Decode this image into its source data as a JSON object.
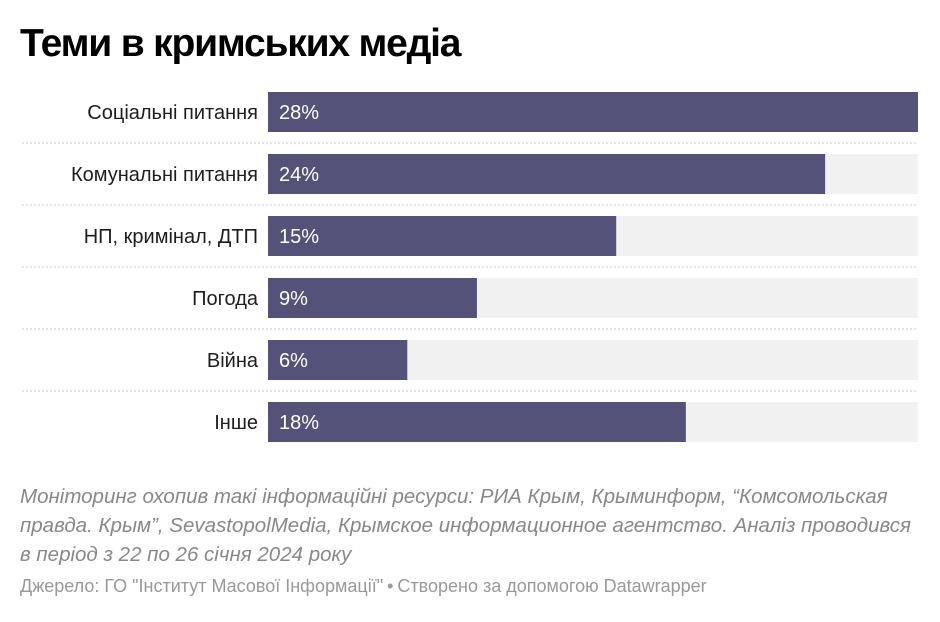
{
  "title": "Теми в кримських медіа",
  "chart_data": {
    "type": "bar",
    "orientation": "horizontal",
    "categories": [
      "Соціальні питання",
      "Комунальні питання",
      "НП, кримінал, ДТП",
      "Погода",
      "Війна",
      "Інше"
    ],
    "values": [
      28,
      24,
      15,
      9,
      6,
      18
    ],
    "value_labels": [
      "28%",
      "24%",
      "15%",
      "9%",
      "6%",
      "18%"
    ],
    "xlim": [
      0,
      28
    ],
    "bar_color": "#55527a",
    "track_color": "#f1f1f1"
  },
  "notes": "Моніторинг охопив такі інформаційні ресурси: РИА Крым, Крыминформ, “Комсомольская правда. Крым”, SevastopolMedia, Крымское информационное агентство. Аналіз проводився в період з 22 по 26 січня 2024 року",
  "footer": {
    "source": "Джерело: ГО \"Інститут Масової Інформації\"",
    "separator": "•",
    "credit": "Створено за допомогою Datawrapper"
  }
}
